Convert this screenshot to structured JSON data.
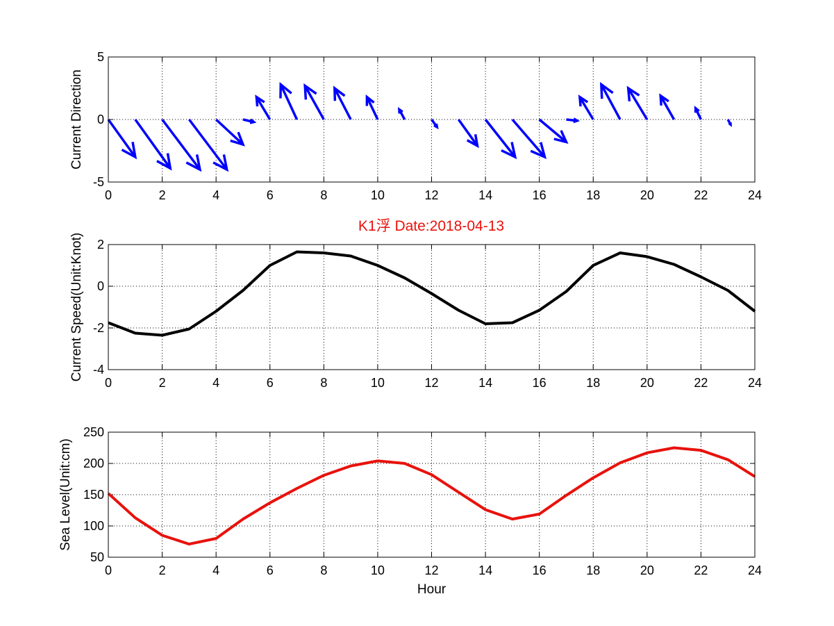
{
  "title": "K1浮    Date:2018-04-13",
  "title_color": "#e8120c",
  "x_ticks": [
    0,
    2,
    4,
    6,
    8,
    10,
    12,
    14,
    16,
    18,
    20,
    22,
    24
  ],
  "chart_data": [
    {
      "type": "quiver",
      "ylabel": "Current Direction",
      "xlim": [
        0,
        24
      ],
      "ylim": [
        -5,
        5
      ],
      "yticks": [
        -5,
        0,
        5
      ],
      "grid": true,
      "color": "#0000ff",
      "vectors": [
        {
          "x": 0,
          "u": 1.0,
          "v": -3.0
        },
        {
          "x": 1,
          "u": 1.3,
          "v": -3.9
        },
        {
          "x": 2,
          "u": 1.4,
          "v": -4.0
        },
        {
          "x": 3,
          "u": 1.4,
          "v": -4.0
        },
        {
          "x": 4,
          "u": 1.0,
          "v": -2.0
        },
        {
          "x": 5,
          "u": 0.4,
          "v": -0.2
        },
        {
          "x": 6,
          "u": -0.5,
          "v": 1.8
        },
        {
          "x": 7,
          "u": -0.6,
          "v": 2.8
        },
        {
          "x": 8,
          "u": -0.7,
          "v": 2.7
        },
        {
          "x": 9,
          "u": -0.6,
          "v": 2.5
        },
        {
          "x": 10,
          "u": -0.4,
          "v": 1.8
        },
        {
          "x": 11,
          "u": -0.2,
          "v": 0.8
        },
        {
          "x": 12,
          "u": 0.2,
          "v": -0.6
        },
        {
          "x": 13,
          "u": 0.7,
          "v": -2.1
        },
        {
          "x": 14,
          "u": 1.1,
          "v": -3.0
        },
        {
          "x": 15,
          "u": 1.2,
          "v": -3.0
        },
        {
          "x": 16,
          "u": 1.0,
          "v": -1.8
        },
        {
          "x": 17,
          "u": 0.4,
          "v": -0.1
        },
        {
          "x": 18,
          "u": -0.5,
          "v": 1.8
        },
        {
          "x": 19,
          "u": -0.7,
          "v": 2.8
        },
        {
          "x": 20,
          "u": -0.7,
          "v": 2.5
        },
        {
          "x": 21,
          "u": -0.5,
          "v": 1.9
        },
        {
          "x": 22,
          "u": -0.2,
          "v": 0.9
        },
        {
          "x": 23,
          "u": 0.1,
          "v": -0.4
        }
      ]
    },
    {
      "type": "line",
      "ylabel": "Current Speed(Unit:Knot)",
      "xlim": [
        0,
        24
      ],
      "ylim": [
        -4,
        2
      ],
      "yticks": [
        -4,
        -2,
        0,
        2
      ],
      "grid": true,
      "color": "#000000",
      "x": [
        0,
        1,
        2,
        3,
        4,
        5,
        6,
        7,
        8,
        9,
        10,
        11,
        12,
        13,
        14,
        15,
        16,
        17,
        18,
        19,
        20,
        21,
        22,
        23,
        24
      ],
      "values": [
        -1.75,
        -2.25,
        -2.35,
        -2.05,
        -1.2,
        -0.2,
        1.0,
        1.65,
        1.6,
        1.45,
        1.0,
        0.4,
        -0.35,
        -1.15,
        -1.8,
        -1.75,
        -1.15,
        -0.25,
        1.0,
        1.6,
        1.42,
        1.05,
        0.45,
        -0.2,
        -1.2
      ]
    },
    {
      "type": "line",
      "ylabel": "Sea Level(Unit:cm)",
      "xlabel": "Hour",
      "xlim": [
        0,
        24
      ],
      "ylim": [
        50,
        250
      ],
      "yticks": [
        50,
        100,
        150,
        200,
        250
      ],
      "grid": true,
      "color": "#e8120c",
      "x": [
        0,
        1,
        2,
        3,
        4,
        5,
        6,
        7,
        8,
        9,
        10,
        11,
        12,
        13,
        14,
        15,
        16,
        17,
        18,
        19,
        20,
        21,
        22,
        23,
        24
      ],
      "values": [
        152,
        113,
        85,
        71,
        80,
        111,
        137,
        160,
        181,
        196,
        204,
        200,
        182,
        154,
        126,
        111,
        119,
        149,
        177,
        201,
        217,
        225,
        221,
        206,
        179
      ]
    }
  ]
}
